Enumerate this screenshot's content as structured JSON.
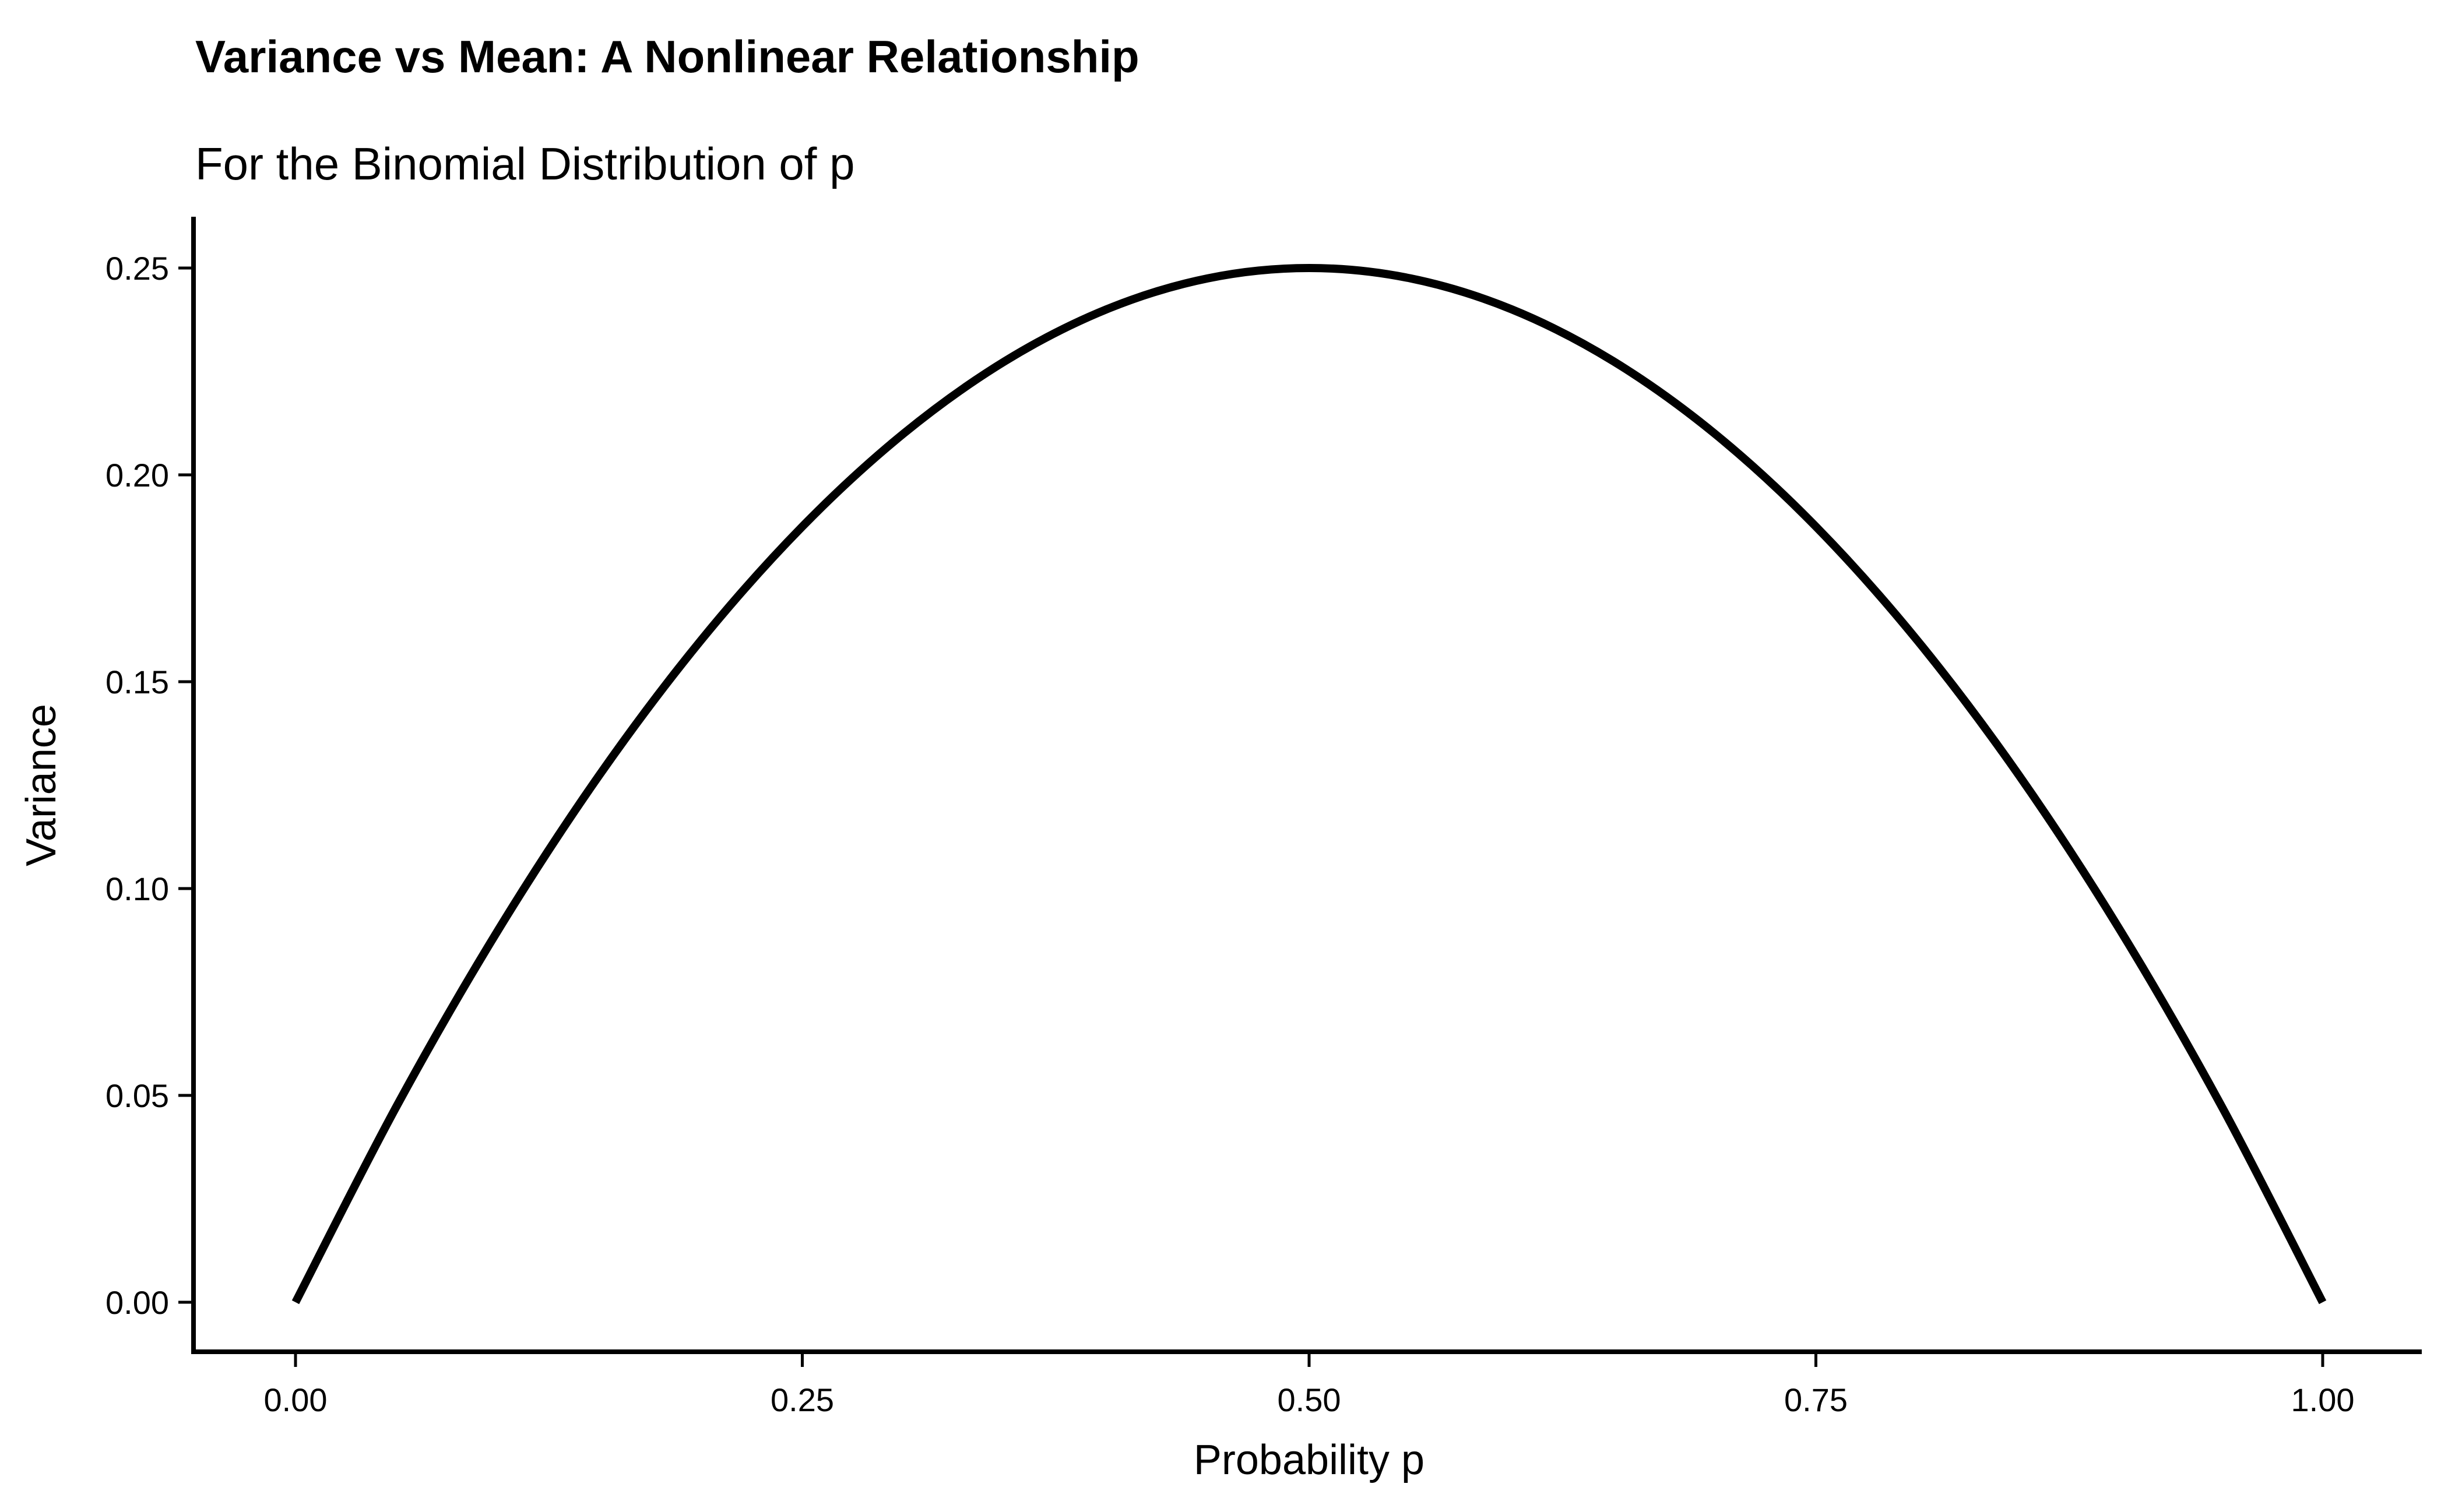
{
  "chart_data": {
    "type": "line",
    "title": "Variance vs Mean: A Nonlinear Relationship",
    "subtitle": "For the Binomial Distribution of p",
    "xlabel": "Probability p",
    "ylabel": "Variance",
    "xlim": [
      0,
      1
    ],
    "ylim": [
      0,
      0.25
    ],
    "x_ticks": [
      "0.00",
      "0.25",
      "0.50",
      "0.75",
      "1.00"
    ],
    "y_ticks": [
      "0.00",
      "0.05",
      "0.10",
      "0.15",
      "0.20",
      "0.25"
    ],
    "grid": false,
    "line_color": "#000000",
    "series": [
      {
        "x": [
          0.0,
          0.05,
          0.1,
          0.15,
          0.2,
          0.25,
          0.3,
          0.35,
          0.4,
          0.45,
          0.5,
          0.55,
          0.6,
          0.65,
          0.7,
          0.75,
          0.8,
          0.85,
          0.9,
          0.95,
          1.0
        ],
        "values": [
          0.0,
          0.0475,
          0.09,
          0.1275,
          0.16,
          0.1875,
          0.21,
          0.2275,
          0.24,
          0.2475,
          0.25,
          0.2475,
          0.24,
          0.2275,
          0.21,
          0.1875,
          0.16,
          0.1275,
          0.09,
          0.0475,
          0.0
        ]
      }
    ]
  }
}
